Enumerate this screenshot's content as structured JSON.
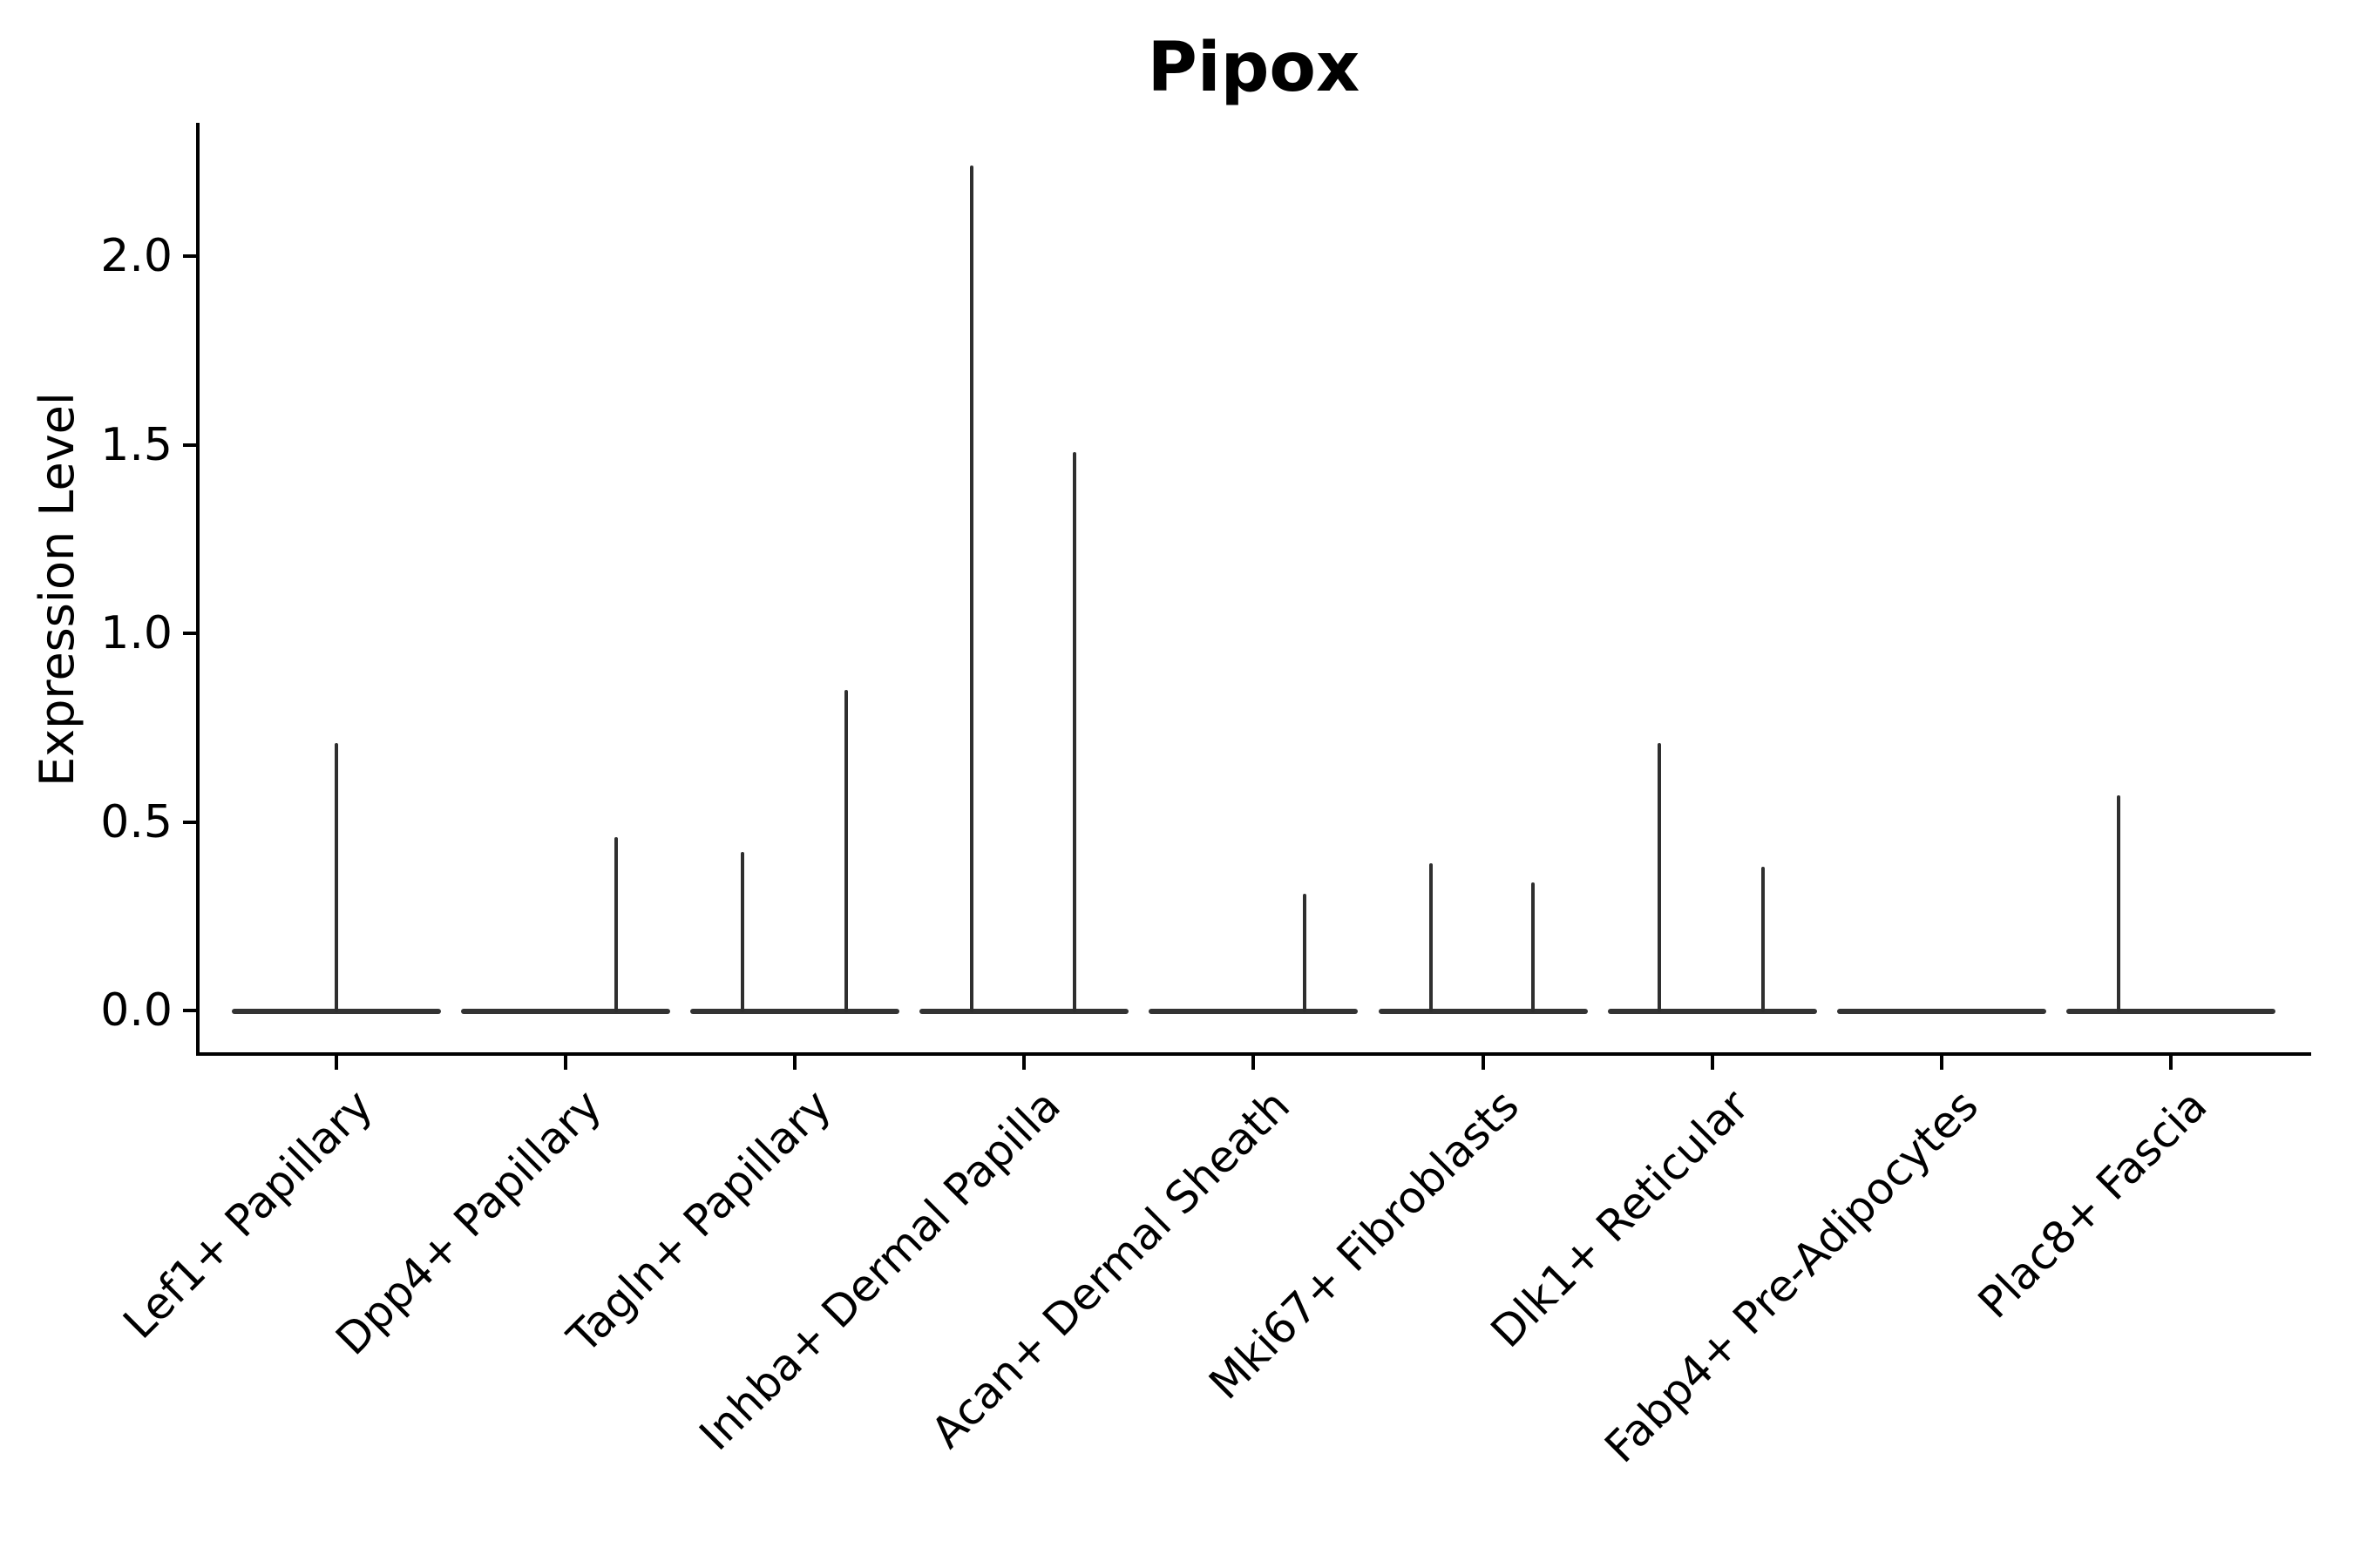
{
  "chart_data": {
    "type": "violin",
    "title": "Pipox",
    "ylabel": "Expression Level",
    "xlabel": "",
    "yticks": [
      0.0,
      0.5,
      1.0,
      1.5,
      2.0
    ],
    "ylim": [
      -0.115,
      2.353
    ],
    "grid": false,
    "legend": "none",
    "categories": [
      "Lef1+ Papillary",
      "Dpp4+ Papillary",
      "Tagln+ Papillary",
      "Inhba+ Dermal Papilla",
      "Acan+ Dermal Sheath",
      "Mki67+ Fibroblasts",
      "Dlk1+ Reticular",
      "Fabp4+ Pre-Adipocytes",
      "Plac8+ Fascia"
    ],
    "violins": [
      {
        "category": "Lef1+ Papillary",
        "baseline_value": 0,
        "spikes": [
          {
            "value": 0.71,
            "offset": 0
          }
        ]
      },
      {
        "category": "Dpp4+ Papillary",
        "baseline_value": 0,
        "spikes": [
          {
            "value": 0.46,
            "offset": 58
          }
        ]
      },
      {
        "category": "Tagln+ Papillary",
        "baseline_value": 0,
        "spikes": [
          {
            "value": 0.42,
            "offset": -60
          },
          {
            "value": 0.85,
            "offset": 59
          }
        ]
      },
      {
        "category": "Inhba+ Dermal Papilla",
        "baseline_value": 0,
        "spikes": [
          {
            "value": 2.24,
            "offset": -60
          },
          {
            "value": 1.48,
            "offset": 58
          }
        ]
      },
      {
        "category": "Acan+ Dermal Sheath",
        "baseline_value": 0,
        "spikes": [
          {
            "value": 0.31,
            "offset": 59
          }
        ]
      },
      {
        "category": "Mki67+ Fibroblasts",
        "baseline_value": 0,
        "spikes": [
          {
            "value": 0.39,
            "offset": -60
          },
          {
            "value": 0.34,
            "offset": 57
          }
        ]
      },
      {
        "category": "Dlk1+ Reticular",
        "baseline_value": 0,
        "spikes": [
          {
            "value": 0.71,
            "offset": -61
          },
          {
            "value": 0.38,
            "offset": 58
          }
        ]
      },
      {
        "category": "Fabp4+ Pre-Adipocytes",
        "baseline_value": 0,
        "spikes": []
      },
      {
        "category": "Plac8+ Fascia",
        "baseline_value": 0,
        "spikes": [
          {
            "value": 0.57,
            "offset": -60
          }
        ]
      }
    ],
    "colors": {
      "violin_stroke": "#2f2f2f",
      "axis": "#000000",
      "text": "#000000",
      "background": "#ffffff"
    }
  }
}
